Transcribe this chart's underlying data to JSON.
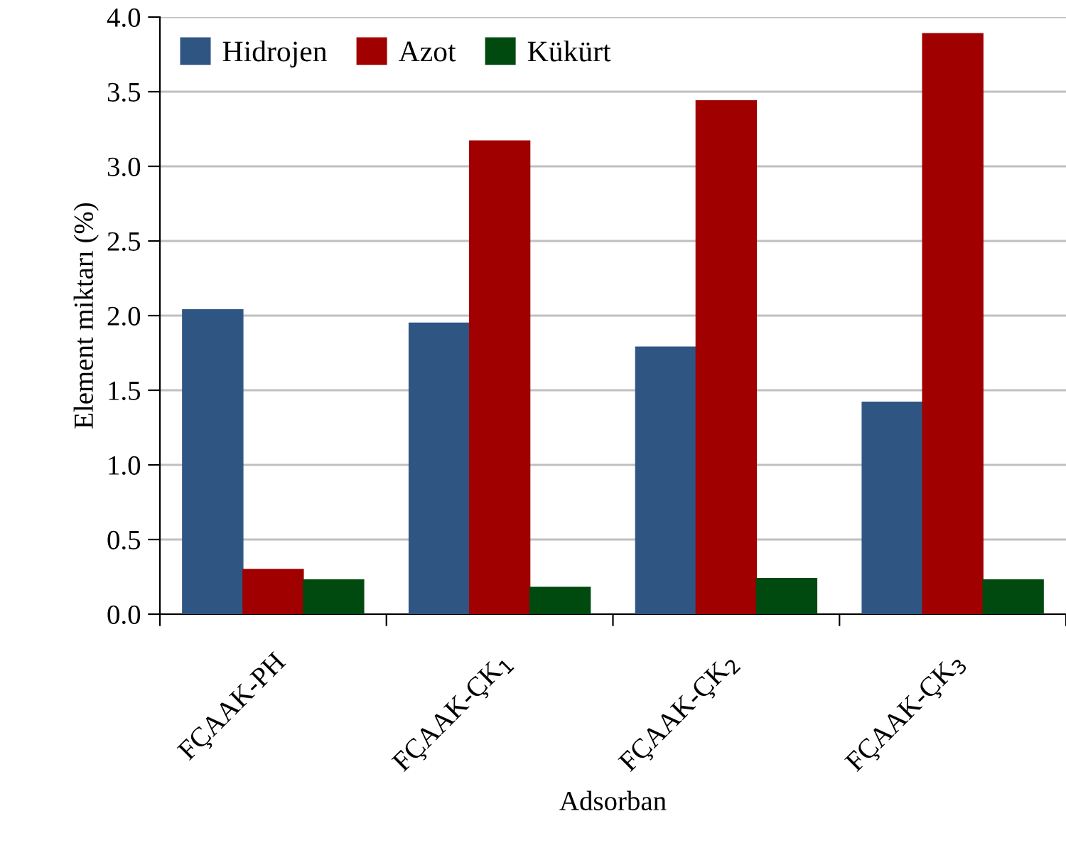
{
  "chart_data": {
    "type": "bar",
    "xlabel": "Adsorban",
    "ylabel": "Element miktarı (%)",
    "categories": [
      "FÇAAK-PH",
      "FÇAAK-ÇK$_{1}$",
      "FÇAAK-ÇK$_{2}$",
      "FÇAAK-ÇK$_{3}$"
    ],
    "series": [
      {
        "name": "Hidrojen",
        "color": "#2f5583",
        "values": [
          2.04,
          1.95,
          1.79,
          1.42
        ]
      },
      {
        "name": "Azot",
        "color": "#a00000",
        "values": [
          0.3,
          3.17,
          3.44,
          3.89
        ]
      },
      {
        "name": "Kükürt",
        "color": "#004a10",
        "values": [
          0.23,
          0.18,
          0.24,
          0.23
        ]
      }
    ],
    "ylim": [
      0,
      4.0
    ],
    "yticks": [
      {
        "value": 0,
        "label": "0.0"
      },
      0.5,
      {
        "value": 1,
        "label": "1.0"
      },
      1.5,
      {
        "value": 2,
        "label": "2.0"
      },
      2.5,
      {
        "value": 3,
        "label": "3.0"
      },
      3.5,
      {
        "value": 4,
        "label": "4.0"
      }
    ],
    "grid": "y",
    "legend": "top left"
  }
}
